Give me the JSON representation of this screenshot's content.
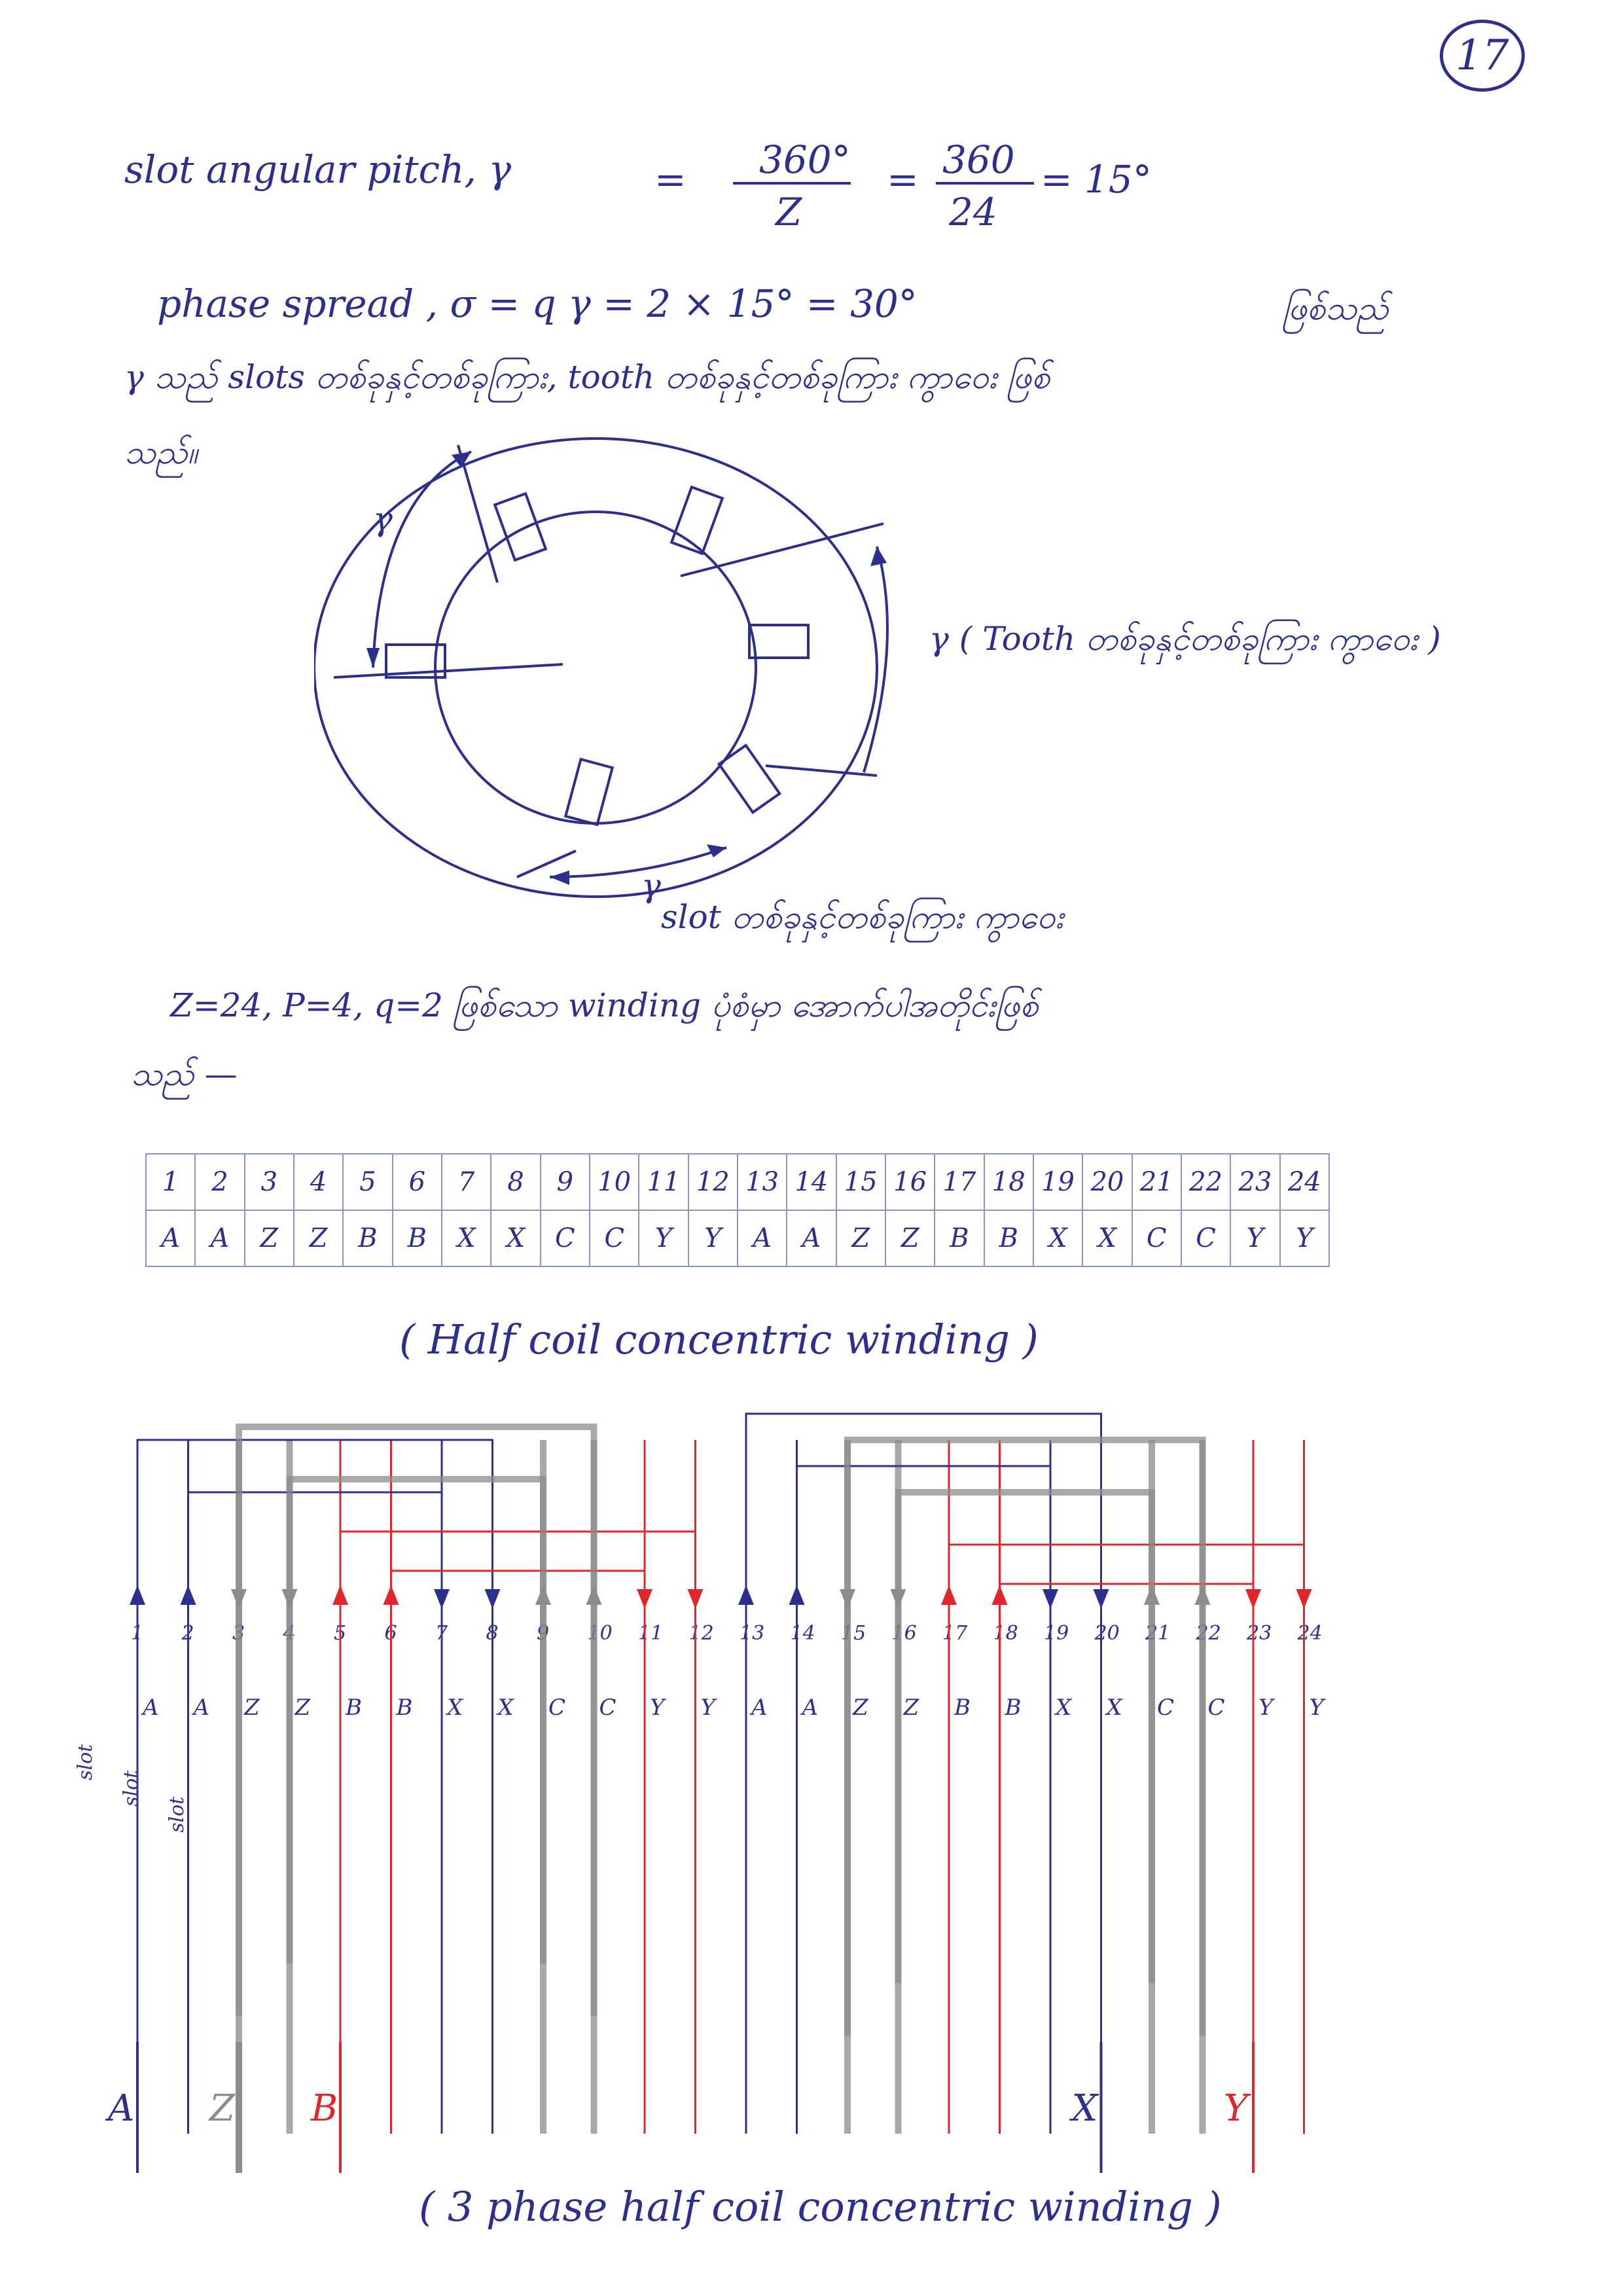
{
  "page_number": "17",
  "formula1": {
    "label": "slot angular pitch, γ",
    "eq1": "=",
    "num1": "360°",
    "den1": "Z",
    "eq2": "=",
    "num2": "360",
    "den2": "24",
    "result": "= 15°"
  },
  "formula2": {
    "text": "phase spread , σ = q γ = 2 × 15° = 30°",
    "burmese": "ဖြစ်သည်"
  },
  "line3": "γ သည် slots တစ်ခုနှင့်တစ်ခုကြား, tooth တစ်ခုနှင့်တစ်ခုကြား ကွာဝေး ဖြစ်",
  "line4": "သည်။",
  "figure1": {
    "label_gamma": "γ",
    "tooth_caption": "γ ( Tooth တစ်ခုနှင့်တစ်ခုကြား ကွာဝေး )",
    "slot_caption": "slot တစ်ခုနှင့်တစ်ခုကြား ကွာဝေး"
  },
  "line5": "Z=24, P=4, q=2 ဖြစ်သော winding ပုံစံမှာ အောက်ပါအတိုင်းဖြစ်",
  "line6": "သည် —",
  "table": {
    "slots": [
      "1",
      "2",
      "3",
      "4",
      "5",
      "6",
      "7",
      "8",
      "9",
      "10",
      "11",
      "12",
      "13",
      "14",
      "15",
      "16",
      "17",
      "18",
      "19",
      "20",
      "21",
      "22",
      "23",
      "24"
    ],
    "phases": [
      "A",
      "A",
      "Z",
      "Z",
      "B",
      "B",
      "X",
      "X",
      "C",
      "C",
      "Y",
      "Y",
      "A",
      "A",
      "Z",
      "Z",
      "B",
      "B",
      "X",
      "X",
      "C",
      "C",
      "Y",
      "Y"
    ]
  },
  "caption1": "( Half coil concentric winding )",
  "diagram": {
    "slot_numbers": [
      "1",
      "2",
      "3",
      "4",
      "5",
      "6",
      "7",
      "8",
      "9",
      "10",
      "11",
      "12",
      "13",
      "14",
      "15",
      "16",
      "17",
      "18",
      "19",
      "20",
      "21",
      "22",
      "23",
      "24"
    ],
    "phase_labels": [
      "A",
      "A",
      "Z",
      "Z",
      "B",
      "B",
      "X",
      "X",
      "C",
      "C",
      "Y",
      "Y",
      "A",
      "A",
      "Z",
      "Z",
      "B",
      "B",
      "X",
      "X",
      "C",
      "C",
      "Y",
      "Y"
    ],
    "side_labels": [
      "slot",
      "slot",
      "slot"
    ],
    "terminals": [
      "A",
      "Z",
      "B",
      "X",
      "Y"
    ],
    "colors": {
      "ink": "#2c2f8c",
      "red": "#e0262b",
      "gray": "#8c8c8c",
      "grid": "#8c95c9"
    }
  },
  "caption2": "( 3 phase half coil concentric winding )"
}
